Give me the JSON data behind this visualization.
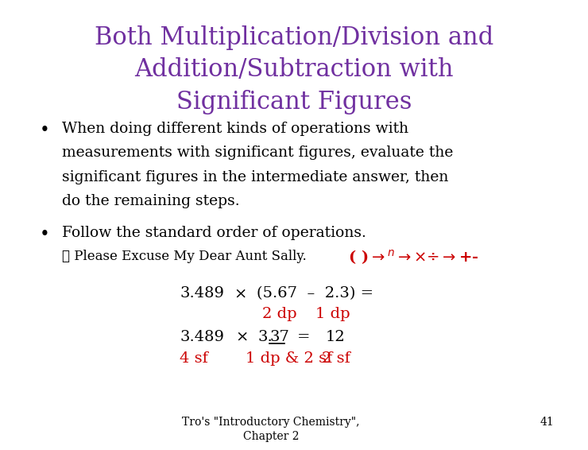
{
  "bg_color": "#ffffff",
  "title_lines": [
    "Both Multiplication/Division and",
    "Addition/Subtraction with",
    "Significant Figures"
  ],
  "title_color": "#7030A0",
  "title_fontsize": 22,
  "bullet1_line1": "When doing different kinds of operations with",
  "bullet1_line2": "measurements with significant figures, evaluate the",
  "bullet1_line3": "significant figures in the intermediate answer, then",
  "bullet1_line4": "do the remaining steps.",
  "bullet2": "Follow the standard order of operations.",
  "checkmark_text": "✓ Please Excuse My Dear Aunt Sally.",
  "body_color": "#000000",
  "red_color": "#CC0000",
  "body_fontsize": 13.5,
  "small_fontsize": 12,
  "eq_fontsize": 14,
  "footer_text": "Tro's \"Introductory Chemistry\",\nChapter 2",
  "footer_num": "41",
  "footer_fontsize": 10
}
